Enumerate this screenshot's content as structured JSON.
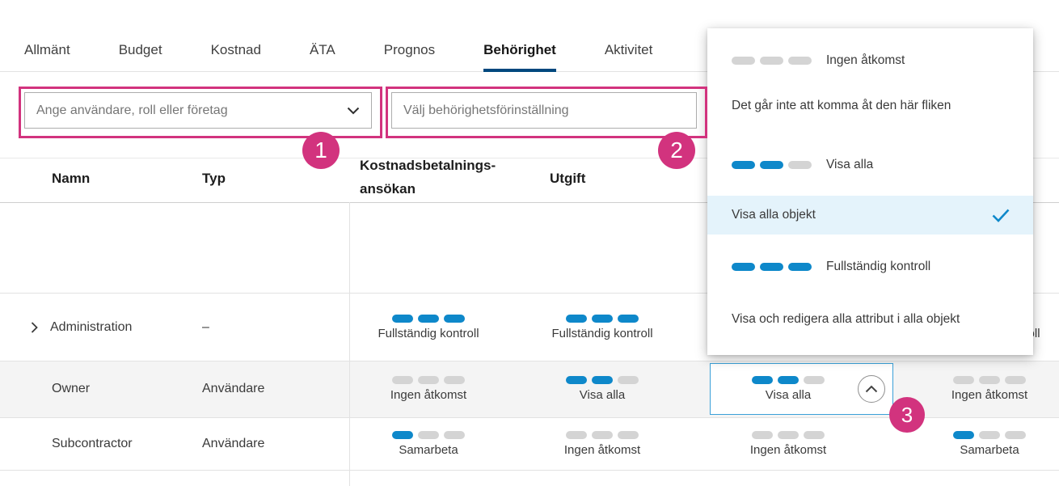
{
  "colors": {
    "accent_blue": "#0e88ca",
    "annotation_pink": "#d2337e",
    "active_tab_underline": "#00487e",
    "row_alt_background": "#f4f4f4",
    "dropdown_highlight": "#e4f3fb",
    "bar_inactive": "#d4d4d4"
  },
  "icons": {
    "combo_chevron": "chevron-down",
    "row_expander": "chevron-right",
    "cell_toggle": "chevron-up",
    "selected_mark": "check"
  },
  "tabs": {
    "items": [
      "Allmänt",
      "Budget",
      "Kostnad",
      "ÄTA",
      "Prognos",
      "Behörighet",
      "Aktivitet"
    ],
    "active": "Behörighet"
  },
  "filters": {
    "user_search_placeholder": "Ange användare, roll eller företag",
    "preset_placeholder": "Välj behörighetsförinställning"
  },
  "callouts": {
    "step1": "1",
    "step2": "2",
    "step3": "3"
  },
  "table": {
    "headers": {
      "name": "Namn",
      "type": "Typ",
      "col3_line1": "Kostnadsbetalnings-",
      "col3_line2": "ansökan",
      "col4": "Utgift"
    },
    "rows": [
      {
        "name": "Administration",
        "type": "–",
        "expandable": true,
        "cells": [
          {
            "label": "Fullständig kontroll",
            "bars": 3
          },
          {
            "label": "Fullständig kontroll",
            "bars": 3
          },
          null,
          {
            "label": "Fullständig kontroll",
            "bars": 3
          }
        ]
      },
      {
        "name": "Owner",
        "type": "Användare",
        "expandable": false,
        "cells": [
          {
            "label": "Ingen åtkomst",
            "bars": 0
          },
          {
            "label": "Visa alla",
            "bars": 2
          },
          {
            "label": "Visa alla",
            "bars": 2,
            "selected": true
          },
          {
            "label": "Ingen åtkomst",
            "bars": 0
          }
        ]
      },
      {
        "name": "Subcontractor",
        "type": "Användare",
        "expandable": false,
        "cells": [
          {
            "label": "Samarbeta",
            "bars": 1
          },
          {
            "label": "Ingen åtkomst",
            "bars": 0
          },
          {
            "label": "Ingen åtkomst",
            "bars": 0
          },
          {
            "label": "Samarbeta",
            "bars": 1
          }
        ]
      }
    ]
  },
  "dropdown": {
    "rows": [
      {
        "kind": "option",
        "bars": 0,
        "label": "Ingen åtkomst"
      },
      {
        "kind": "description",
        "label": "Det går inte att komma åt den här fliken"
      },
      {
        "kind": "option",
        "bars": 2,
        "label": "Visa alla"
      },
      {
        "kind": "selected",
        "label": "Visa alla objekt"
      },
      {
        "kind": "option",
        "bars": 3,
        "label": "Fullständig kontroll"
      },
      {
        "kind": "description",
        "label": "Visa och redigera alla attribut i alla objekt"
      }
    ]
  }
}
